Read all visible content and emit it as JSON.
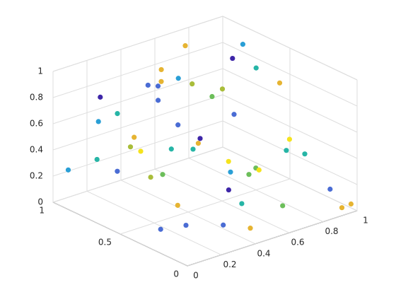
{
  "chart_data": {
    "type": "scatter3",
    "x": [
      0.05,
      0.12,
      0.2,
      0.08,
      0.3,
      0.25,
      0.4,
      0.15,
      0.35,
      0.5,
      0.45,
      0.55,
      0.6,
      0.7,
      0.65,
      0.8,
      0.85,
      0.9,
      0.95,
      0.75,
      0.1,
      0.22,
      0.33,
      0.42,
      0.52,
      0.62,
      0.72,
      0.82,
      0.92,
      0.18,
      0.28,
      0.38,
      0.48,
      0.58,
      0.68,
      0.78,
      0.88,
      0.98,
      0.03,
      0.14,
      0.26,
      0.36,
      0.46,
      0.56,
      0.66,
      0.76,
      0.86,
      0.96,
      0.44,
      0.54
    ],
    "y": [
      0.95,
      0.8,
      0.6,
      0.3,
      0.9,
      0.5,
      0.7,
      0.2,
      0.4,
      0.85,
      0.1,
      0.6,
      0.3,
      0.9,
      0.5,
      0.75,
      0.2,
      0.45,
      0.05,
      0.6,
      0.55,
      0.35,
      0.15,
      0.65,
      0.95,
      0.25,
      0.4,
      0.7,
      0.1,
      0.9,
      0.75,
      0.55,
      0.3,
      0.8,
      0.15,
      0.95,
      0.6,
      0.02,
      0.7,
      0.45,
      0.85,
      0.05,
      0.5,
      0.4,
      0.65,
      0.2,
      0.35,
      0.8,
      0.75,
      0.9
    ],
    "z": [
      0.25,
      0.85,
      0.5,
      0.1,
      0.6,
      0.35,
      0.9,
      0.15,
      0.55,
      0.75,
      0.05,
      0.45,
      0.3,
      0.95,
      0.2,
      0.65,
      0.4,
      0.8,
      0.02,
      0.55,
      0.6,
      0.2,
      0.1,
      0.4,
      0.7,
      0.35,
      0.25,
      0.9,
      0.15,
      0.3,
      0.5,
      0.65,
      0.45,
      0.8,
      0.1,
      0.6,
      0.85,
      0.05,
      0.75,
      0.4,
      0.2,
      0.3,
      0.5,
      0.15,
      0.7,
      0.55,
      0.35,
      0.9,
      0.95,
      0.6
    ],
    "colors": [
      "#2a9fd6",
      "#3e26a8",
      "#f5e31d",
      "#4a6cd4",
      "#26b5a6",
      "#6cbe5a",
      "#e6b432",
      "#4a6cd4",
      "#26b5a6",
      "#4a6cd4",
      "#e6b432",
      "#3e26a8",
      "#6cbe5a",
      "#e6b432",
      "#2a9fd6",
      "#a9bd3a",
      "#26b5a6",
      "#e6b432",
      "#e6b432",
      "#4a6cd4",
      "#a9bd3a",
      "#e6b432",
      "#4a6cd4",
      "#26b5a6",
      "#4a6cd4",
      "#f5e31d",
      "#6cbe5a",
      "#3e26a8",
      "#4a6cd4",
      "#26b5a6",
      "#e6b432",
      "#4a6cd4",
      "#f5e31d",
      "#2a9fd6",
      "#6cbe5a",
      "#a9bd3a",
      "#26b5a6",
      "#e6b432",
      "#2a9fd6",
      "#a9bd3a",
      "#4a6cd4",
      "#26b5a6",
      "#e6b432",
      "#3e26a8",
      "#6cbe5a",
      "#f5e31d",
      "#26b5a6",
      "#2a9fd6",
      "#e6b432",
      "#4a6cd4"
    ],
    "xlim": [
      0,
      1
    ],
    "ylim": [
      0,
      1
    ],
    "zlim": [
      0,
      1
    ],
    "xticks": [
      0,
      0.2,
      0.4,
      0.6,
      0.8,
      1
    ],
    "yticks": [
      0,
      0.5,
      1
    ],
    "zticks": [
      0,
      0.2,
      0.4,
      0.6,
      0.8,
      1
    ],
    "grid": true
  }
}
